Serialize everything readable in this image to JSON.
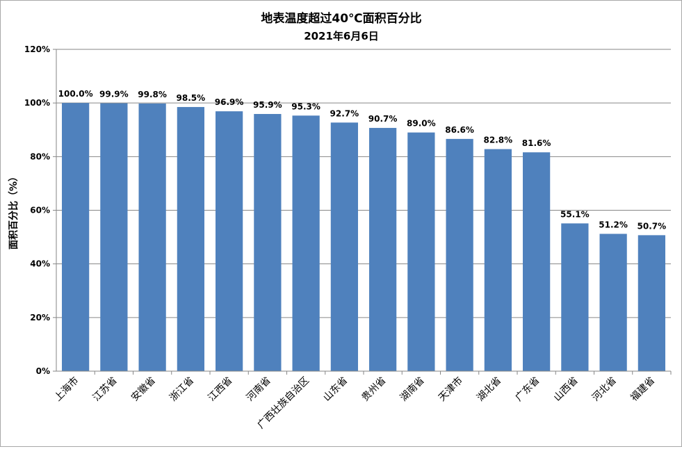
{
  "chart_data": {
    "type": "bar",
    "title": "地表温度超过40℃面积百分比",
    "subtitle": "2021年6月6日",
    "xlabel": "",
    "ylabel": "面积百分比（%）",
    "ylim": [
      0,
      120
    ],
    "yticks": [
      "0%",
      "20%",
      "40%",
      "60%",
      "80%",
      "100%",
      "120%"
    ],
    "grid": true,
    "legend": "none",
    "bar_color": "#4f81bd",
    "categories": [
      "上海市",
      "江苏省",
      "安徽省",
      "浙江省",
      "江西省",
      "河南省",
      "广西壮族自治区",
      "山东省",
      "贵州省",
      "湖南省",
      "天津市",
      "湖北省",
      "广东省",
      "山西省",
      "河北省",
      "福建省"
    ],
    "values": [
      100.0,
      99.9,
      99.8,
      98.5,
      96.9,
      95.9,
      95.3,
      92.7,
      90.7,
      89.0,
      86.6,
      82.8,
      81.6,
      55.1,
      51.2,
      50.7
    ],
    "data_labels": [
      "100.0%",
      "99.9%",
      "99.8%",
      "98.5%",
      "96.9%",
      "95.9%",
      "95.3%",
      "92.7%",
      "90.7%",
      "89.0%",
      "86.6%",
      "82.8%",
      "81.6%",
      "55.1%",
      "51.2%",
      "50.7%"
    ]
  }
}
